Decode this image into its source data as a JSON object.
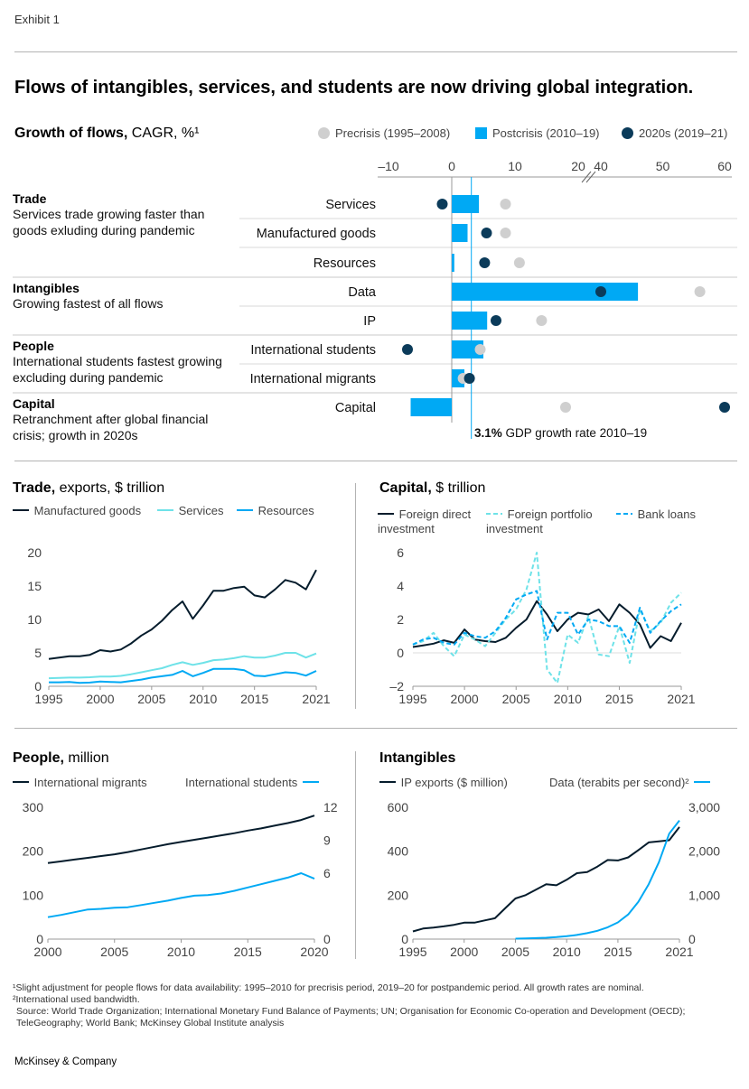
{
  "exhibit": "Exhibit 1",
  "headline": "Flows of intangibles, services, and students are now driving global integration.",
  "colors": {
    "navy": "#051c2c",
    "blue": "#00a9f4",
    "lightblue": "#6ee2e8",
    "gray": "#cfcfcf",
    "dark": "#0b3b5a"
  },
  "top": {
    "title_bold": "Growth of flows,",
    "title_rest": "CAGR, %¹",
    "legend": {
      "precrisis": "Precrisis (1995–2008)",
      "postcrisis": "Postcrisis (2010–19)",
      "twenties": "2020s (2019–21)"
    },
    "groups": [
      {
        "title": "Trade",
        "desc": "Services trade growing faster than goods exluding during pandemic"
      },
      {
        "title": "Intangibles",
        "desc": "Growing fastest of all flows"
      },
      {
        "title": "People",
        "desc": "International students fastest growing excluding during pandemic"
      },
      {
        "title": "Capital",
        "desc": "Retranchment after global financial crisis; growth in 2020s"
      }
    ],
    "gdp_bold": "3.1%",
    "gdp_text": "GDP growth rate 2010–19"
  },
  "chart_data": [
    {
      "id": "growth",
      "type": "bar",
      "title": "Growth of flows, CAGR, %¹",
      "ticks": [
        "–10",
        "0",
        "10",
        "20",
        "40",
        "50",
        "60"
      ],
      "axis_break": "between 20 and 40",
      "reference_line": {
        "value": 3.1,
        "label": "GDP growth rate 2010–19"
      },
      "categories": [
        "Services",
        "Manufactured goods",
        "Resources",
        "Data",
        "IP",
        "International students",
        "International migrants",
        "Capital"
      ],
      "series": [
        {
          "name": "Postcrisis (2010–19)",
          "kind": "bar",
          "values": [
            4.3,
            2.5,
            0.4,
            46,
            5.6,
            5.0,
            2.0,
            -6.5
          ]
        },
        {
          "name": "Precrisis (1995–2008)",
          "kind": "dot",
          "values": [
            8.5,
            8.5,
            10.7,
            56,
            14.2,
            4.5,
            1.8,
            18
          ]
        },
        {
          "name": "2020s (2019–21)",
          "kind": "dot",
          "values": [
            -1.5,
            5.5,
            5.2,
            40,
            7.0,
            -7.0,
            2.8,
            60
          ]
        }
      ]
    },
    {
      "id": "trade",
      "type": "line",
      "title_bold": "Trade,",
      "title_rest": "exports, $ trillion",
      "x": [
        1995,
        1996,
        1997,
        1998,
        1999,
        2000,
        2001,
        2002,
        2003,
        2004,
        2005,
        2006,
        2007,
        2008,
        2009,
        2010,
        2011,
        2012,
        2013,
        2014,
        2015,
        2016,
        2017,
        2018,
        2019,
        2020,
        2021
      ],
      "ylim": [
        0,
        20
      ],
      "yticks": [
        "0",
        "5",
        "10",
        "15",
        "20"
      ],
      "xticks": [
        "1995",
        "2000",
        "2005",
        "2010",
        "2015",
        "2021"
      ],
      "series": [
        {
          "name": "Manufactured goods",
          "style": "navy",
          "values": [
            4.1,
            4.3,
            4.5,
            4.5,
            4.7,
            5.4,
            5.2,
            5.5,
            6.4,
            7.6,
            8.5,
            9.8,
            11.4,
            12.7,
            10.1,
            12.1,
            14.3,
            14.3,
            14.7,
            14.9,
            13.6,
            13.3,
            14.5,
            15.9,
            15.5,
            14.5,
            17.4
          ]
        },
        {
          "name": "Services",
          "style": "lightblue",
          "values": [
            1.2,
            1.25,
            1.3,
            1.3,
            1.35,
            1.45,
            1.45,
            1.55,
            1.8,
            2.1,
            2.4,
            2.7,
            3.2,
            3.6,
            3.2,
            3.5,
            3.9,
            4.0,
            4.2,
            4.5,
            4.3,
            4.3,
            4.6,
            5.0,
            5.0,
            4.3,
            4.9
          ]
        },
        {
          "name": "Resources",
          "style": "blue",
          "values": [
            0.6,
            0.6,
            0.65,
            0.5,
            0.55,
            0.7,
            0.65,
            0.6,
            0.8,
            1.0,
            1.3,
            1.5,
            1.7,
            2.3,
            1.5,
            2.0,
            2.6,
            2.6,
            2.6,
            2.4,
            1.6,
            1.5,
            1.8,
            2.1,
            2.0,
            1.6,
            2.3
          ]
        }
      ]
    },
    {
      "id": "capital",
      "type": "line",
      "title_bold": "Capital,",
      "title_rest": "$ trillion",
      "x": [
        1995,
        1996,
        1997,
        1998,
        1999,
        2000,
        2001,
        2002,
        2003,
        2004,
        2005,
        2006,
        2007,
        2008,
        2009,
        2010,
        2011,
        2012,
        2013,
        2014,
        2015,
        2016,
        2017,
        2018,
        2019,
        2020,
        2021
      ],
      "ylim": [
        -2,
        6
      ],
      "yticks": [
        "–2",
        "0",
        "2",
        "4",
        "6"
      ],
      "xticks": [
        "1995",
        "2000",
        "2005",
        "2010",
        "2015",
        "2021"
      ],
      "series": [
        {
          "name": "Foreign direct investment",
          "style": "navy",
          "values": [
            0.35,
            0.45,
            0.55,
            0.75,
            0.6,
            1.4,
            0.8,
            0.7,
            0.65,
            0.9,
            1.5,
            2.0,
            3.1,
            2.3,
            1.3,
            2.0,
            2.4,
            2.3,
            2.6,
            1.9,
            2.9,
            2.4,
            1.7,
            0.3,
            1.0,
            0.7,
            1.8
          ]
        },
        {
          "name": "Foreign portfolio investment",
          "style": "lightblue-dashed",
          "values": [
            0.5,
            0.7,
            1.2,
            0.4,
            -0.2,
            1.1,
            0.8,
            0.4,
            1.2,
            2.0,
            2.6,
            3.8,
            6.0,
            -1.0,
            -1.8,
            1.1,
            0.6,
            2.2,
            -0.1,
            -0.2,
            1.6,
            -0.6,
            2.6,
            1.3,
            1.8,
            3.0,
            3.6
          ]
        },
        {
          "name": "Bank loans",
          "style": "blue-dashed",
          "values": [
            0.5,
            0.8,
            0.9,
            0.6,
            0.5,
            1.2,
            1.0,
            0.9,
            1.3,
            2.1,
            3.2,
            3.5,
            3.7,
            0.8,
            2.4,
            2.4,
            1.1,
            2.0,
            1.9,
            1.6,
            1.6,
            0.6,
            2.7,
            1.2,
            1.9,
            2.5,
            2.9
          ]
        }
      ]
    },
    {
      "id": "people",
      "type": "line",
      "title_bold": "People,",
      "title_rest": "million",
      "x": [
        2000,
        2001,
        2002,
        2003,
        2004,
        2005,
        2006,
        2007,
        2008,
        2009,
        2010,
        2011,
        2012,
        2013,
        2014,
        2015,
        2016,
        2017,
        2018,
        2019,
        2020
      ],
      "ylim_left": [
        0,
        300
      ],
      "ylim_right": [
        0,
        12
      ],
      "yticks_left": [
        "0",
        "100",
        "200",
        "300"
      ],
      "yticks_right": [
        "0",
        "6",
        "9",
        "12"
      ],
      "xticks": [
        "2000",
        "2005",
        "2010",
        "2015",
        "2020"
      ],
      "series": [
        {
          "name": "International migrants",
          "axis": "left",
          "style": "navy",
          "values": [
            173,
            177,
            181,
            185,
            189,
            193,
            198,
            204,
            210,
            216,
            221,
            226,
            231,
            236,
            241,
            247,
            252,
            258,
            264,
            271,
            281
          ]
        },
        {
          "name": "International students",
          "axis": "right",
          "style": "blue",
          "values": [
            2.0,
            2.2,
            2.45,
            2.7,
            2.75,
            2.85,
            2.9,
            3.1,
            3.3,
            3.5,
            3.75,
            3.95,
            4.0,
            4.15,
            4.4,
            4.7,
            5.0,
            5.3,
            5.6,
            6.0,
            5.5
          ]
        }
      ]
    },
    {
      "id": "intangibles",
      "type": "line",
      "title_bold": "Intangibles",
      "title_rest": "",
      "x": [
        1995,
        1996,
        1997,
        1998,
        1999,
        2000,
        2001,
        2002,
        2003,
        2004,
        2005,
        2006,
        2007,
        2008,
        2009,
        2010,
        2011,
        2012,
        2013,
        2014,
        2015,
        2016,
        2017,
        2018,
        2019,
        2020,
        2021
      ],
      "ylim_left": [
        0,
        600
      ],
      "ylim_right": [
        0,
        3000
      ],
      "yticks_left": [
        "0",
        "200",
        "400",
        "600"
      ],
      "yticks_right": [
        "0",
        "1,000",
        "2,000",
        "3,000"
      ],
      "xticks": [
        "1995",
        "2000",
        "2005",
        "2010",
        "2015",
        "2021"
      ],
      "series": [
        {
          "name": "IP exports ($ million)",
          "axis": "left",
          "style": "navy",
          "values": [
            35,
            48,
            52,
            58,
            65,
            75,
            75,
            85,
            95,
            140,
            185,
            200,
            225,
            250,
            245,
            270,
            300,
            305,
            330,
            360,
            358,
            372,
            405,
            440,
            445,
            450,
            510
          ]
        },
        {
          "name": "Data (terabits per second)²",
          "axis": "right",
          "style": "blue",
          "values": [
            null,
            null,
            null,
            null,
            null,
            null,
            null,
            null,
            null,
            null,
            10,
            15,
            22,
            30,
            45,
            65,
            95,
            135,
            190,
            270,
            380,
            560,
            850,
            1250,
            1750,
            2400,
            2700
          ]
        }
      ]
    }
  ],
  "footnotes": {
    "note1": "¹Slight adjustment for people flows for data availability: 1995–2010 for precrisis period, 2019–20 for postpandemic period. All growth rates are nominal.",
    "note2": "²International used bandwidth.",
    "source1": "Source: World Trade Organization; International Monetary Fund Balance of Payments; UN; Organisation for Economic Co-operation and Development (OECD);",
    "source2": "TeleGeography; World Bank; McKinsey Global Institute analysis"
  },
  "brand": "McKinsey & Company"
}
